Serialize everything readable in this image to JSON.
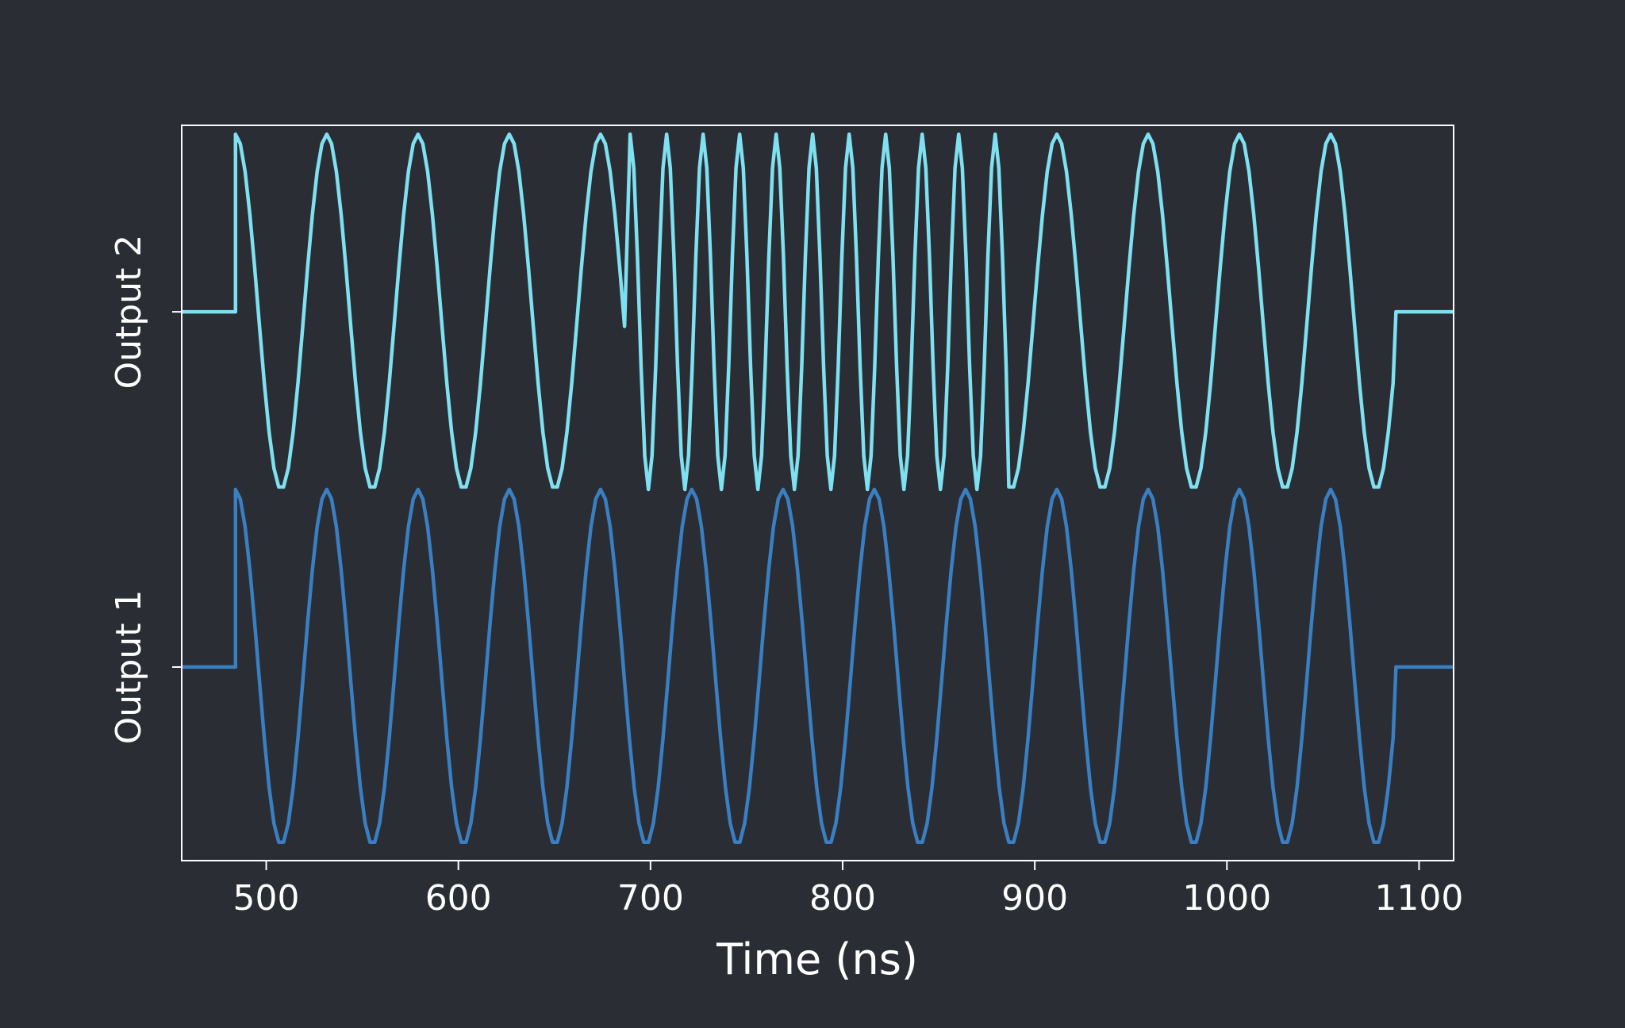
{
  "chart_data": {
    "type": "line",
    "x_label": "Time (ns)",
    "xlim": [
      456,
      1118
    ],
    "xticks": [
      500,
      600,
      700,
      800,
      900,
      1000,
      1100
    ],
    "ylim": [
      -0.545,
      1.525
    ],
    "yticks": [
      {
        "value": 0,
        "label": "Output 1"
      },
      {
        "value": 1,
        "label": "Output 2"
      }
    ],
    "series": [
      {
        "color": "#3a7fc1",
        "x": [
          456,
          484,
          484,
          486.5,
          489,
          491.5,
          494,
          496.5,
          499,
          501.5,
          504,
          506.5,
          509,
          511.5,
          514,
          516.5,
          519,
          521.5,
          524,
          526.5,
          529,
          531.5,
          534,
          536.5,
          539,
          541.5,
          544,
          546.5,
          549,
          551.5,
          554,
          556.5,
          559,
          561.5,
          564,
          566.5,
          569,
          571.5,
          574,
          576.5,
          579,
          581.5,
          584,
          586.5,
          589,
          591.5,
          594,
          596.5,
          599,
          601.5,
          604,
          606.5,
          609,
          611.5,
          614,
          616.5,
          619,
          621.5,
          624,
          626.5,
          629,
          631.5,
          634,
          636.5,
          639,
          641.5,
          644,
          646.5,
          649,
          651.5,
          654,
          656.5,
          659,
          661.5,
          664,
          666.5,
          669,
          671.5,
          674,
          676.5,
          679,
          681.5,
          684,
          686.5,
          689,
          691.5,
          694,
          696.5,
          699,
          701.5,
          704,
          706.5,
          709,
          711.5,
          714,
          716.5,
          719,
          721.5,
          724,
          726.5,
          729,
          731.5,
          734,
          736.5,
          739,
          741.5,
          744,
          746.5,
          749,
          751.5,
          754,
          756.5,
          759,
          761.5,
          764,
          766.5,
          769,
          771.5,
          774,
          776.5,
          779,
          781.5,
          784,
          786.5,
          789,
          791.5,
          794,
          796.5,
          799,
          801.5,
          804,
          806.5,
          809,
          811.5,
          814,
          816.5,
          819,
          821.5,
          824,
          826.5,
          829,
          831.5,
          834,
          836.5,
          839,
          841.5,
          844,
          846.5,
          849,
          851.5,
          854,
          856.5,
          859,
          861.5,
          864,
          866.5,
          869,
          871.5,
          874,
          876.5,
          879,
          881.5,
          884,
          886.5,
          889,
          891.5,
          894,
          896.5,
          899,
          901.5,
          904,
          906.5,
          909,
          911.5,
          914,
          916.5,
          919,
          921.5,
          924,
          926.5,
          929,
          931.5,
          934,
          936.5,
          939,
          941.5,
          944,
          946.5,
          949,
          951.5,
          954,
          956.5,
          959,
          961.5,
          964,
          966.5,
          969,
          971.5,
          974,
          976.5,
          979,
          981.5,
          984,
          986.5,
          989,
          991.5,
          994,
          996.5,
          999,
          1001.5,
          1004,
          1006.5,
          1009,
          1011.5,
          1014,
          1016.5,
          1019,
          1021.5,
          1024,
          1026.5,
          1029,
          1031.5,
          1034,
          1036.5,
          1039,
          1041.5,
          1044,
          1046.5,
          1049,
          1051.5,
          1054,
          1056.5,
          1059,
          1061.5,
          1064,
          1066.5,
          1069,
          1071.5,
          1074,
          1076.5,
          1079,
          1081.5,
          1084,
          1086.5,
          1088,
          1118
        ],
        "values": [
          0,
          0,
          0.5,
          0.473,
          0.395,
          0.273,
          0.123,
          -0.041,
          -0.201,
          -0.339,
          -0.44,
          -0.493,
          -0.493,
          -0.44,
          -0.339,
          -0.201,
          -0.041,
          0.123,
          0.273,
          0.395,
          0.473,
          0.5,
          0.473,
          0.395,
          0.273,
          0.123,
          -0.041,
          -0.201,
          -0.339,
          -0.44,
          -0.493,
          -0.493,
          -0.44,
          -0.339,
          -0.201,
          -0.041,
          0.123,
          0.273,
          0.395,
          0.473,
          0.5,
          0.473,
          0.395,
          0.273,
          0.123,
          -0.041,
          -0.201,
          -0.339,
          -0.44,
          -0.493,
          -0.493,
          -0.44,
          -0.339,
          -0.201,
          -0.041,
          0.123,
          0.273,
          0.395,
          0.473,
          0.5,
          0.473,
          0.395,
          0.273,
          0.123,
          -0.041,
          -0.201,
          -0.339,
          -0.44,
          -0.493,
          -0.493,
          -0.44,
          -0.339,
          -0.201,
          -0.041,
          0.123,
          0.273,
          0.395,
          0.473,
          0.5,
          0.473,
          0.395,
          0.273,
          0.123,
          -0.041,
          -0.201,
          -0.339,
          -0.44,
          -0.493,
          -0.493,
          -0.44,
          -0.339,
          -0.201,
          -0.041,
          0.123,
          0.273,
          0.395,
          0.473,
          0.5,
          0.473,
          0.395,
          0.273,
          0.123,
          -0.041,
          -0.201,
          -0.339,
          -0.44,
          -0.493,
          -0.493,
          -0.44,
          -0.339,
          -0.201,
          -0.041,
          0.123,
          0.273,
          0.395,
          0.473,
          0.5,
          0.473,
          0.395,
          0.273,
          0.123,
          -0.041,
          -0.201,
          -0.339,
          -0.44,
          -0.493,
          -0.493,
          -0.44,
          -0.339,
          -0.201,
          -0.041,
          0.123,
          0.273,
          0.395,
          0.473,
          0.5,
          0.473,
          0.395,
          0.273,
          0.123,
          -0.041,
          -0.201,
          -0.339,
          -0.44,
          -0.493,
          -0.493,
          -0.44,
          -0.339,
          -0.201,
          -0.041,
          0.123,
          0.273,
          0.395,
          0.473,
          0.5,
          0.473,
          0.395,
          0.273,
          0.123,
          -0.041,
          -0.201,
          -0.339,
          -0.44,
          -0.493,
          -0.493,
          -0.44,
          -0.339,
          -0.201,
          -0.041,
          0.123,
          0.273,
          0.395,
          0.473,
          0.5,
          0.473,
          0.395,
          0.273,
          0.123,
          -0.041,
          -0.201,
          -0.339,
          -0.44,
          -0.493,
          -0.493,
          -0.44,
          -0.339,
          -0.201,
          -0.041,
          0.123,
          0.273,
          0.395,
          0.473,
          0.5,
          0.473,
          0.395,
          0.273,
          0.123,
          -0.041,
          -0.201,
          -0.339,
          -0.44,
          -0.493,
          -0.493,
          -0.44,
          -0.339,
          -0.201,
          -0.041,
          0.123,
          0.273,
          0.395,
          0.473,
          0.5,
          0.473,
          0.395,
          0.273,
          0.123,
          -0.041,
          -0.201,
          -0.339,
          -0.44,
          -0.493,
          -0.493,
          -0.44,
          -0.339,
          -0.201,
          -0.041,
          0.123,
          0.273,
          0.395,
          0.473,
          0.5,
          0.473,
          0.395,
          0.273,
          0.123,
          -0.041,
          -0.201,
          -0.339,
          -0.44,
          -0.493,
          -0.493,
          -0.44,
          -0.339,
          -0.201,
          0,
          0
        ]
      },
      {
        "color": "#7ee0f0",
        "x": [
          456,
          484,
          484,
          486.5,
          489,
          491.5,
          494,
          496.5,
          499,
          501.5,
          504,
          506.5,
          509,
          511.5,
          514,
          516.5,
          519,
          521.5,
          524,
          526.5,
          529,
          531.5,
          534,
          536.5,
          539,
          541.5,
          544,
          546.5,
          549,
          551.5,
          554,
          556.5,
          559,
          561.5,
          564,
          566.5,
          569,
          571.5,
          574,
          576.5,
          579,
          581.5,
          584,
          586.5,
          589,
          591.5,
          594,
          596.5,
          599,
          601.5,
          604,
          606.5,
          609,
          611.5,
          614,
          616.5,
          619,
          621.5,
          624,
          626.5,
          629,
          631.5,
          634,
          636.5,
          639,
          641.5,
          644,
          646.5,
          649,
          651.5,
          654,
          656.5,
          659,
          661.5,
          664,
          666.5,
          669,
          671.5,
          674,
          676.5,
          679,
          681.5,
          684,
          686.5,
          689.4,
          691.3,
          693.2,
          695.1,
          697,
          698.9,
          700.8,
          702.7,
          704.6,
          706.5,
          708.4,
          710.3,
          712.2,
          714.1,
          716,
          717.9,
          719.8,
          721.7,
          723.6,
          725.5,
          727.4,
          729.3,
          731.2,
          733.1,
          735,
          736.9,
          738.8,
          740.7,
          742.6,
          744.5,
          746.4,
          748.3,
          750.2,
          752.1,
          754,
          755.9,
          757.8,
          759.7,
          761.6,
          763.5,
          765.4,
          767.3,
          769.2,
          771.1,
          773,
          774.9,
          776.8,
          778.7,
          780.6,
          782.5,
          784.4,
          786.3,
          788.2,
          790.1,
          792,
          793.9,
          795.8,
          797.7,
          799.6,
          801.5,
          803.4,
          805.3,
          807.2,
          809.1,
          811,
          812.9,
          814.8,
          816.7,
          818.6,
          820.5,
          822.4,
          824.3,
          826.2,
          828.1,
          830,
          831.9,
          833.8,
          835.7,
          837.6,
          839.5,
          841.4,
          843.3,
          845.2,
          847.1,
          849,
          850.9,
          852.8,
          854.7,
          856.6,
          858.5,
          860.4,
          862.3,
          864.2,
          866.1,
          868,
          869.9,
          871.8,
          873.7,
          875.6,
          877.5,
          879.4,
          881.3,
          883.2,
          885.1,
          886.5,
          889,
          891.5,
          894,
          896.5,
          899,
          901.5,
          904,
          906.5,
          909,
          911.5,
          914,
          916.5,
          919,
          921.5,
          924,
          926.5,
          929,
          931.5,
          934,
          936.5,
          939,
          941.5,
          944,
          946.5,
          949,
          951.5,
          954,
          956.5,
          959,
          961.5,
          964,
          966.5,
          969,
          971.5,
          974,
          976.5,
          979,
          981.5,
          984,
          986.5,
          989,
          991.5,
          994,
          996.5,
          999,
          1001.5,
          1004,
          1006.5,
          1009,
          1011.5,
          1014,
          1016.5,
          1019,
          1021.5,
          1024,
          1026.5,
          1029,
          1031.5,
          1034,
          1036.5,
          1039,
          1041.5,
          1044,
          1046.5,
          1049,
          1051.5,
          1054,
          1056.5,
          1059,
          1061.5,
          1064,
          1066.5,
          1069,
          1071.5,
          1074,
          1076.5,
          1079,
          1081.5,
          1084,
          1086.5,
          1088,
          1118
        ],
        "values": [
          1,
          1,
          1.5,
          1.473,
          1.395,
          1.273,
          1.123,
          0.959,
          0.799,
          0.661,
          0.56,
          0.507,
          0.507,
          0.56,
          0.661,
          0.799,
          0.959,
          1.123,
          1.273,
          1.395,
          1.473,
          1.5,
          1.473,
          1.395,
          1.273,
          1.123,
          0.959,
          0.799,
          0.661,
          0.56,
          0.507,
          0.507,
          0.56,
          0.661,
          0.799,
          0.959,
          1.123,
          1.273,
          1.395,
          1.473,
          1.5,
          1.473,
          1.395,
          1.273,
          1.123,
          0.959,
          0.799,
          0.661,
          0.56,
          0.507,
          0.507,
          0.56,
          0.661,
          0.799,
          0.959,
          1.123,
          1.273,
          1.395,
          1.473,
          1.5,
          1.473,
          1.395,
          1.273,
          1.123,
          0.959,
          0.799,
          0.661,
          0.56,
          0.507,
          0.507,
          0.56,
          0.661,
          0.799,
          0.959,
          1.123,
          1.273,
          1.395,
          1.473,
          1.5,
          1.473,
          1.395,
          1.273,
          1.123,
          0.959,
          1.5,
          1.405,
          1.155,
          0.845,
          0.595,
          0.5,
          0.595,
          0.845,
          1.155,
          1.405,
          1.5,
          1.405,
          1.155,
          0.845,
          0.595,
          0.5,
          0.595,
          0.845,
          1.155,
          1.405,
          1.5,
          1.405,
          1.155,
          0.845,
          0.595,
          0.5,
          0.595,
          0.845,
          1.155,
          1.405,
          1.5,
          1.405,
          1.155,
          0.845,
          0.595,
          0.5,
          0.595,
          0.845,
          1.155,
          1.405,
          1.5,
          1.405,
          1.155,
          0.845,
          0.595,
          0.5,
          0.595,
          0.845,
          1.155,
          1.405,
          1.5,
          1.405,
          1.155,
          0.845,
          0.595,
          0.5,
          0.595,
          0.845,
          1.155,
          1.405,
          1.5,
          1.405,
          1.155,
          0.845,
          0.595,
          0.5,
          0.595,
          0.845,
          1.155,
          1.405,
          1.5,
          1.405,
          1.155,
          0.845,
          0.595,
          0.5,
          0.595,
          0.845,
          1.155,
          1.405,
          1.5,
          1.405,
          1.155,
          0.845,
          0.595,
          0.5,
          0.595,
          0.845,
          1.155,
          1.405,
          1.5,
          1.405,
          1.155,
          0.845,
          0.595,
          0.5,
          0.595,
          0.845,
          1.155,
          1.405,
          1.5,
          1.405,
          1.155,
          0.845,
          0.507,
          0.507,
          0.56,
          0.661,
          0.799,
          0.959,
          1.123,
          1.273,
          1.395,
          1.473,
          1.5,
          1.473,
          1.395,
          1.273,
          1.123,
          0.959,
          0.799,
          0.661,
          0.56,
          0.507,
          0.507,
          0.56,
          0.661,
          0.799,
          0.959,
          1.123,
          1.273,
          1.395,
          1.473,
          1.5,
          1.473,
          1.395,
          1.273,
          1.123,
          0.959,
          0.799,
          0.661,
          0.56,
          0.507,
          0.507,
          0.56,
          0.661,
          0.799,
          0.959,
          1.123,
          1.273,
          1.395,
          1.473,
          1.5,
          1.473,
          1.395,
          1.273,
          1.123,
          0.959,
          0.799,
          0.661,
          0.56,
          0.507,
          0.507,
          0.56,
          0.661,
          0.799,
          0.959,
          1.123,
          1.273,
          1.395,
          1.473,
          1.5,
          1.473,
          1.395,
          1.273,
          1.123,
          0.959,
          0.799,
          0.661,
          0.56,
          0.507,
          0.507,
          0.56,
          0.661,
          0.799,
          1,
          1
        ]
      }
    ]
  }
}
